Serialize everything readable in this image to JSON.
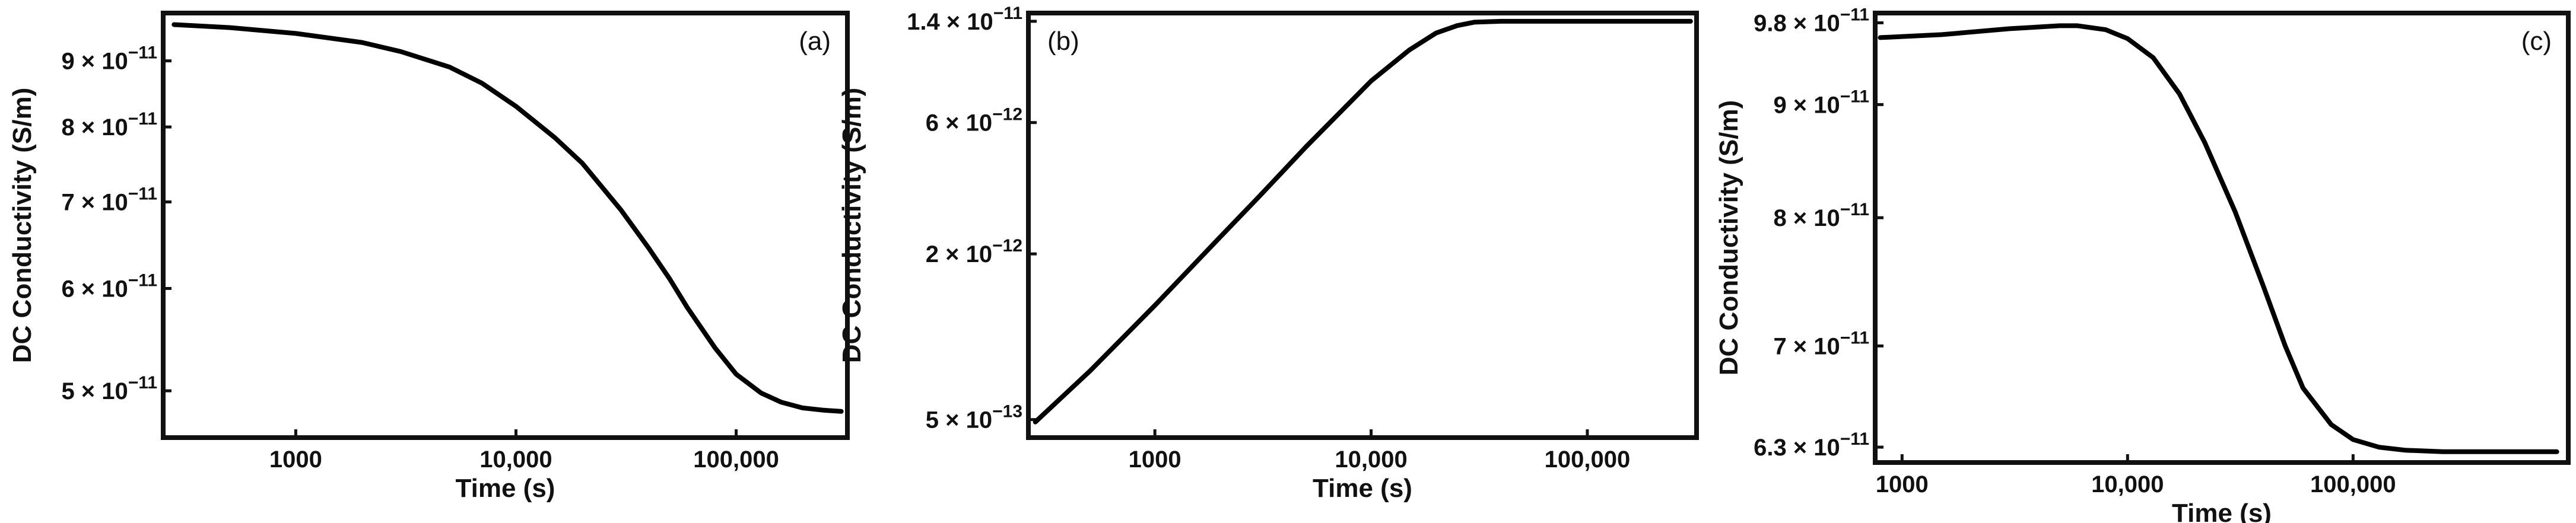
{
  "chart_data": [
    {
      "type": "line",
      "panel_label": "(a)",
      "xlabel": "Time (s)",
      "ylabel": "DC Conductivity (S/m)",
      "xscale": "log",
      "yscale": "log",
      "xlim": [
        250,
        320000
      ],
      "ylim": [
        4.6e-11,
        9.8e-11
      ],
      "xticks": [
        {
          "value": 1000,
          "label": "1000"
        },
        {
          "value": 10000,
          "label": "10,000"
        },
        {
          "value": 100000,
          "label": "100,000"
        }
      ],
      "yticks": [
        {
          "value": 5e-11,
          "mantissa": "5",
          "times_ten": "× 10",
          "exponent": "−11"
        },
        {
          "value": 6e-11,
          "mantissa": "6",
          "times_ten": "× 10",
          "exponent": "−11"
        },
        {
          "value": 7e-11,
          "mantissa": "7",
          "times_ten": "× 10",
          "exponent": "−11"
        },
        {
          "value": 8e-11,
          "mantissa": "8",
          "times_ten": "× 10",
          "exponent": "−11"
        },
        {
          "value": 9e-11,
          "mantissa": "9",
          "times_ten": "× 10",
          "exponent": "−11"
        }
      ],
      "series": [
        {
          "name": "DC conductivity",
          "x": [
            280,
            500,
            1000,
            2000,
            3000,
            5000,
            7000,
            10000,
            15000,
            20000,
            30000,
            40000,
            50000,
            60000,
            80000,
            100000,
            130000,
            160000,
            200000,
            250000,
            300000
          ],
          "y": [
            9.6e-11,
            9.55e-11,
            9.45e-11,
            9.3e-11,
            9.15e-11,
            8.9e-11,
            8.65e-11,
            8.3e-11,
            7.85e-11,
            7.5e-11,
            6.9e-11,
            6.45e-11,
            6.1e-11,
            5.8e-11,
            5.4e-11,
            5.15e-11,
            4.98e-11,
            4.9e-11,
            4.85e-11,
            4.83e-11,
            4.82e-11
          ]
        }
      ]
    },
    {
      "type": "line",
      "panel_label": "(b)",
      "xlabel": "Time (s)",
      "ylabel": "DC Conductivity (S/m)",
      "xscale": "log",
      "yscale": "log",
      "xlim": [
        260,
        320000
      ],
      "ylim": [
        4.3e-13,
        1.5e-11
      ],
      "xticks": [
        {
          "value": 1000,
          "label": "1000"
        },
        {
          "value": 10000,
          "label": "10,000"
        },
        {
          "value": 100000,
          "label": "100,000"
        }
      ],
      "yticks": [
        {
          "value": 5e-13,
          "mantissa": "5",
          "times_ten": "× 10",
          "exponent": "−13"
        },
        {
          "value": 2e-12,
          "mantissa": "2",
          "times_ten": "× 10",
          "exponent": "−12"
        },
        {
          "value": 6e-12,
          "mantissa": "6",
          "times_ten": "× 10",
          "exponent": "−12"
        },
        {
          "value": 1.4e-11,
          "mantissa": "1.4",
          "times_ten": "× 10",
          "exponent": "−11"
        }
      ],
      "series": [
        {
          "name": "DC conductivity",
          "x": [
            280,
            500,
            1000,
            2000,
            3000,
            5000,
            7000,
            10000,
            15000,
            20000,
            25000,
            30000,
            40000,
            60000,
            100000,
            200000,
            300000
          ],
          "y": [
            4.9e-13,
            7.5e-13,
            1.3e-12,
            2.3e-12,
            3.2e-12,
            4.9e-12,
            6.4e-12,
            8.5e-12,
            1.1e-11,
            1.27e-11,
            1.35e-11,
            1.39e-11,
            1.4e-11,
            1.4e-11,
            1.4e-11,
            1.4e-11,
            1.4e-11
          ]
        }
      ]
    },
    {
      "type": "line",
      "panel_label": "(c)",
      "xlabel": "Time (s)",
      "ylabel": "DC Conductivity (S/m)",
      "xscale": "log",
      "yscale": "log",
      "xlim": [
        760,
        900000
      ],
      "ylim": [
        6.2e-11,
        9.9e-11
      ],
      "xticks": [
        {
          "value": 1000,
          "label": "1000"
        },
        {
          "value": 10000,
          "label": "10,000"
        },
        {
          "value": 100000,
          "label": "100,000"
        }
      ],
      "yticks": [
        {
          "value": 6.3e-11,
          "mantissa": "6.3",
          "times_ten": "× 10",
          "exponent": "−11"
        },
        {
          "value": 7e-11,
          "mantissa": "7",
          "times_ten": "× 10",
          "exponent": "−11"
        },
        {
          "value": 8e-11,
          "mantissa": "8",
          "times_ten": "× 10",
          "exponent": "−11"
        },
        {
          "value": 9e-11,
          "mantissa": "9",
          "times_ten": "× 10",
          "exponent": "−11"
        },
        {
          "value": 9.8e-11,
          "mantissa": "9.8",
          "times_ten": "× 10",
          "exponent": "−11"
        }
      ],
      "series": [
        {
          "name": "DC conductivity",
          "x": [
            800,
            1500,
            3000,
            5000,
            6000,
            8000,
            10000,
            13000,
            17000,
            22000,
            30000,
            40000,
            50000,
            60000,
            80000,
            100000,
            130000,
            170000,
            250000,
            400000,
            600000,
            800000
          ],
          "y": [
            9.65e-11,
            9.68e-11,
            9.74e-11,
            9.77e-11,
            9.77e-11,
            9.73e-11,
            9.64e-11,
            9.45e-11,
            9.1e-11,
            8.65e-11,
            8.05e-11,
            7.45e-11,
            7e-11,
            6.7e-11,
            6.45e-11,
            6.35e-11,
            6.3e-11,
            6.28e-11,
            6.27e-11,
            6.27e-11,
            6.27e-11,
            6.27e-11
          ]
        }
      ]
    }
  ]
}
